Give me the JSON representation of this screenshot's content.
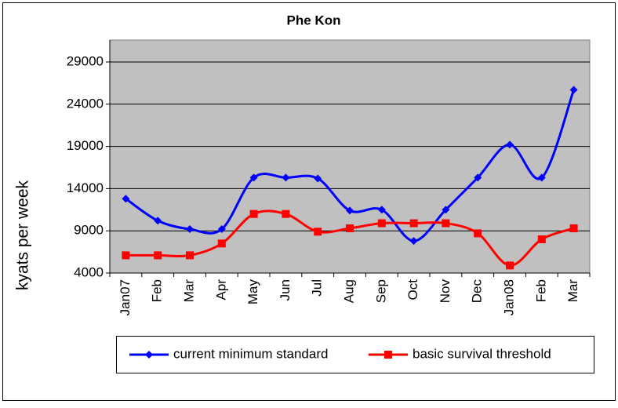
{
  "chart_data": {
    "type": "line",
    "title": "Phe Kon",
    "y_label": "kyats per week",
    "categories": [
      "Jan07",
      "Feb",
      "Mar",
      "Apr",
      "May",
      "Jun",
      "Jul",
      "Aug",
      "Sep",
      "Oct",
      "Nov",
      "Dec",
      "Jan08",
      "Feb",
      "Mar"
    ],
    "series": [
      {
        "name": "current minimum standard",
        "color": "#0000ff",
        "marker": "diamond",
        "values": [
          12800,
          10200,
          9200,
          9200,
          15300,
          15300,
          15200,
          11400,
          11500,
          7800,
          11500,
          15300,
          19200,
          15300,
          25700
        ]
      },
      {
        "name": "basic survival threshold",
        "color": "#ff0000",
        "marker": "square",
        "values": [
          6100,
          6100,
          6100,
          7500,
          11000,
          11000,
          8900,
          9300,
          9900,
          9900,
          9900,
          8700,
          4900,
          8000,
          9300
        ]
      }
    ],
    "ylim": [
      4000,
      31600
    ],
    "yticks": [
      4000,
      9000,
      14000,
      19000,
      24000,
      29000
    ],
    "grid": true,
    "smooth": true,
    "legend": "bottom"
  }
}
